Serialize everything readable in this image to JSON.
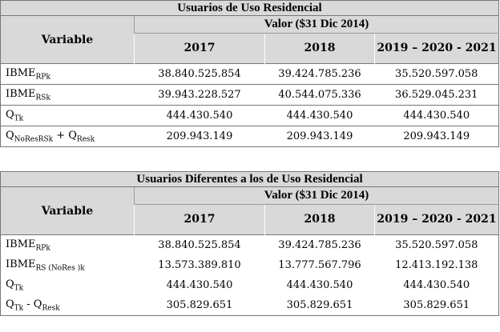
{
  "tables": [
    {
      "title": "Usuarios de Uso Residencial",
      "variable_header": "Variable",
      "group_header": "Valor ($31 Dic 2014)",
      "columns": [
        "2017",
        "2018",
        "2019 – 2020 - 2021"
      ],
      "rows": [
        {
          "variable": [
            {
              "text": "IBME"
            },
            {
              "sub": "RPk"
            }
          ],
          "values": [
            "38.840.525.854",
            "39.424.785.236",
            "35.520.597.058"
          ]
        },
        {
          "variable": [
            {
              "text": "IBME"
            },
            {
              "sub": "RSk"
            }
          ],
          "values": [
            "39.943.228.527",
            "40.544.075.336",
            "36.529.045.231"
          ]
        },
        {
          "variable": [
            {
              "text": "Q"
            },
            {
              "sub": "Tk"
            }
          ],
          "values": [
            "444.430.540",
            "444.430.540",
            "444.430.540"
          ]
        },
        {
          "variable": [
            {
              "text": "Q"
            },
            {
              "sub": "NoResRSk"
            },
            {
              "text": " + Q"
            },
            {
              "sub": "Resk"
            }
          ],
          "values": [
            "209.943.149",
            "209.943.149",
            "209.943.149"
          ]
        }
      ]
    },
    {
      "title": "Usuarios Diferentes a los de Uso Residencial",
      "variable_header": "Variable",
      "group_header": "Valor ($31 Dic 2014)",
      "columns": [
        "2017",
        "2018",
        "2019 – 2020 - 2021"
      ],
      "rows": [
        {
          "variable": [
            {
              "text": "IBME"
            },
            {
              "sub": "RPk"
            }
          ],
          "values": [
            "38.840.525.854",
            "39.424.785.236",
            "35.520.597.058"
          ]
        },
        {
          "variable": [
            {
              "text": "IBME"
            },
            {
              "sub": "RS (NoRes )k"
            }
          ],
          "values": [
            "13.573.389.810",
            "13.777.567.796",
            "12.413.192.138"
          ]
        },
        {
          "variable": [
            {
              "text": "Q"
            },
            {
              "sub": "Tk"
            }
          ],
          "values": [
            "444.430.540",
            "444.430.540",
            "444.430.540"
          ]
        },
        {
          "variable": [
            {
              "text": "Q"
            },
            {
              "sub": "Tk"
            },
            {
              "text": " -  Q"
            },
            {
              "sub": "Resk"
            }
          ],
          "values": [
            "305.829.651",
            "305.829.651",
            "305.829.651"
          ]
        }
      ]
    }
  ]
}
